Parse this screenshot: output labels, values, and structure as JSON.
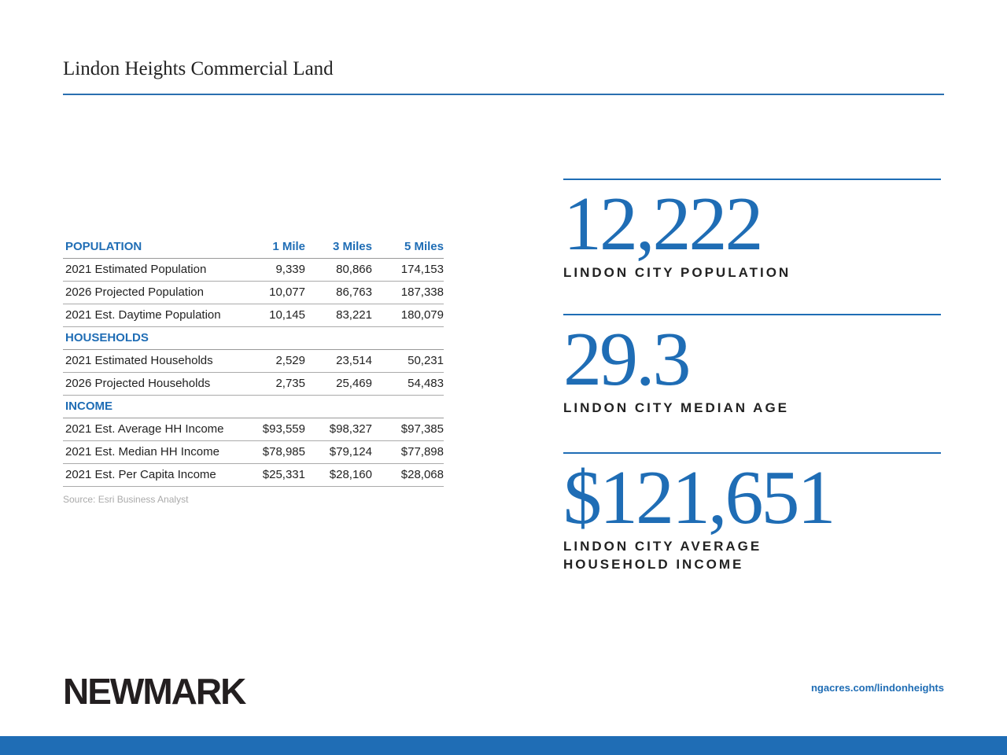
{
  "header": {
    "title": "Lindon Heights Commercial Land"
  },
  "table": {
    "columns": [
      "1 Mile",
      "3 Miles",
      "5 Miles"
    ],
    "sections": [
      {
        "heading": "POPULATION",
        "rows": [
          [
            "2021 Estimated Population",
            "9,339",
            "80,866",
            "174,153"
          ],
          [
            "2026 Projected Population",
            "10,077",
            "86,763",
            "187,338"
          ],
          [
            "2021 Est. Daytime Population",
            "10,145",
            "83,221",
            "180,079"
          ]
        ]
      },
      {
        "heading": "HOUSEHOLDS",
        "rows": [
          [
            "2021 Estimated Households",
            "2,529",
            "23,514",
            "50,231"
          ],
          [
            "2026 Projected Households",
            "2,735",
            "25,469",
            "54,483"
          ]
        ]
      },
      {
        "heading": "INCOME",
        "rows": [
          [
            "2021 Est. Average HH Income",
            "$93,559",
            "$98,327",
            "$97,385"
          ],
          [
            "2021 Est. Median HH Income",
            "$78,985",
            "$79,124",
            "$77,898"
          ],
          [
            "2021 Est. Per Capita Income",
            "$25,331",
            "$28,160",
            "$28,068"
          ]
        ]
      }
    ],
    "source": "Source: Esri Business Analyst"
  },
  "stats": [
    {
      "value": "12,222",
      "label": [
        "LINDON CITY POPULATION"
      ]
    },
    {
      "value": "29.3",
      "label": [
        "LINDON CITY MEDIAN AGE"
      ]
    },
    {
      "value": "$121,651",
      "label": [
        "LINDON CITY AVERAGE",
        "HOUSEHOLD INCOME"
      ]
    }
  ],
  "footer": {
    "logo": "NEWMARK",
    "url": "ngacres.com/lindonheights"
  }
}
